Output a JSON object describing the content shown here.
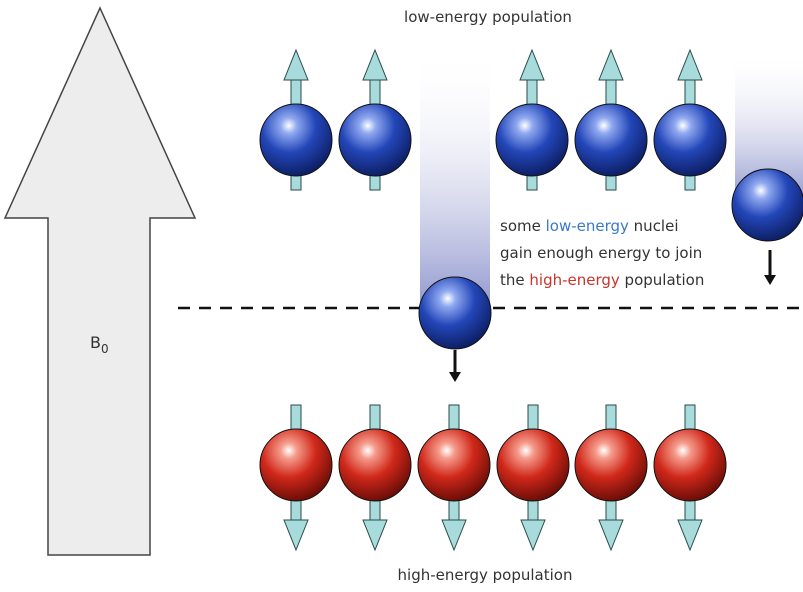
{
  "diagram": {
    "field_label": {
      "symbol": "B",
      "subscript": "0"
    },
    "low_population_label": "low-energy population",
    "high_population_label": "high-energy population",
    "annotation": {
      "line1": {
        "before": "some ",
        "highlight": "low-energy",
        "after": " nuclei"
      },
      "line2": "gain enough energy to join",
      "line3": {
        "before": "the ",
        "highlight": "high-energy",
        "after": " population"
      }
    }
  }
}
